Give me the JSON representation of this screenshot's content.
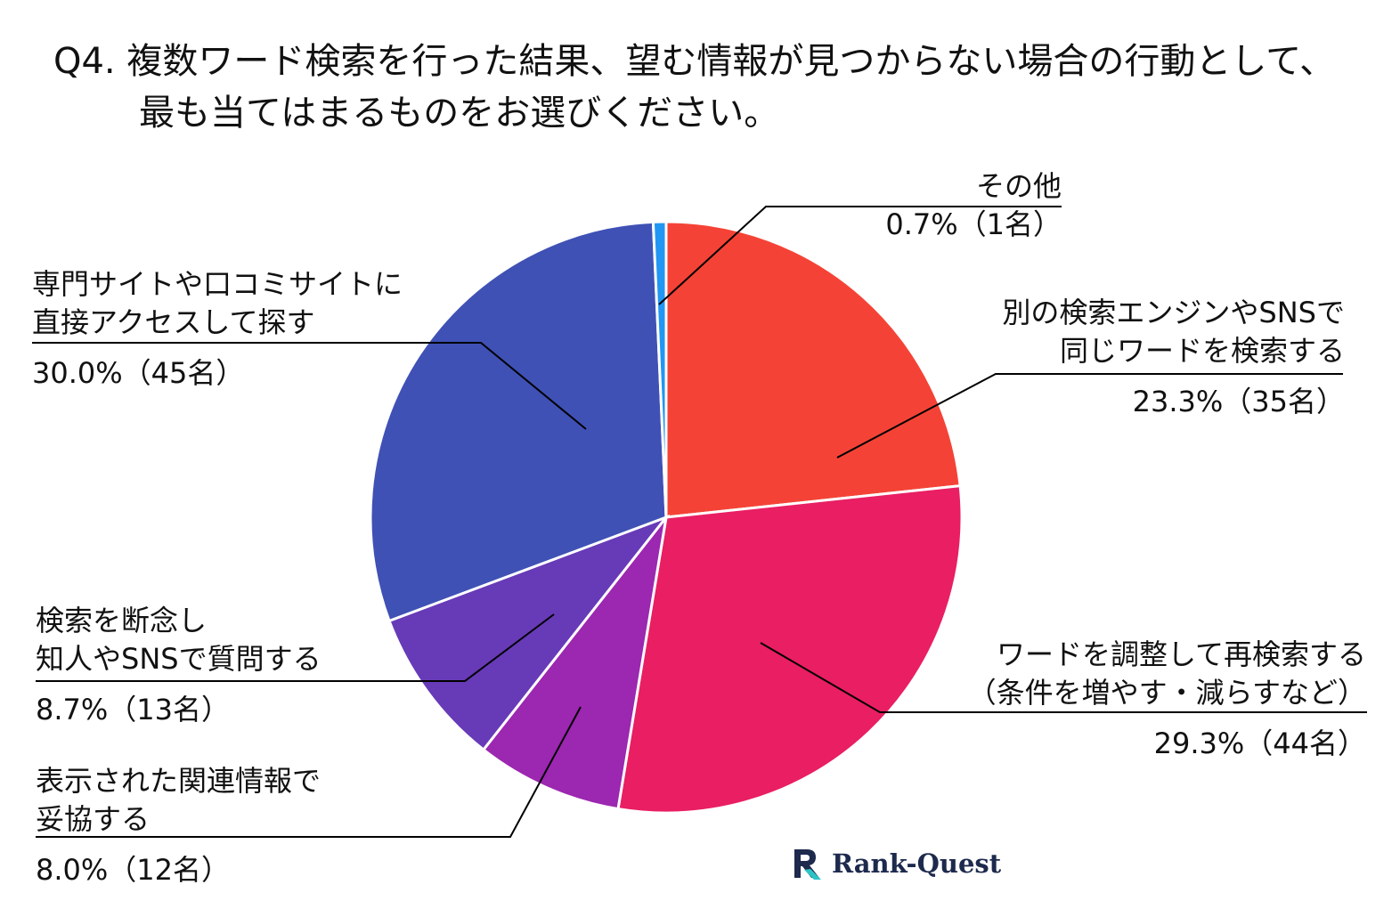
{
  "title": {
    "line1": "Q4. 複数ワード検索を行った結果、望む情報が見つからない場合の行動として、",
    "line2": "最も当てはまるものをお選びください。"
  },
  "chart_data": {
    "type": "pie",
    "start_angle_deg": 0,
    "direction": "clockwise",
    "slices": [
      {
        "label1": "別の検索エンジンやSNSで",
        "label2": "同じワードを検索する",
        "value": 23.3,
        "value_label": "23.3%（35名）",
        "color": "#f44336"
      },
      {
        "label1": "ワードを調整して再検索する",
        "label2": "（条件を増やす・減らすなど）",
        "value": 29.3,
        "value_label": "29.3%（44名）",
        "color": "#e91e63"
      },
      {
        "label1": "表示された関連情報で",
        "label2": "妥協する",
        "value": 8.0,
        "value_label": "8.0%（12名）",
        "color": "#9c27b0"
      },
      {
        "label1": "検索を断念し",
        "label2": "知人やSNSで質問する",
        "value": 8.7,
        "value_label": "8.7%（13名）",
        "color": "#673ab7"
      },
      {
        "label1": "専門サイトや口コミサイトに",
        "label2": "直接アクセスして探す",
        "value": 30.0,
        "value_label": "30.0%（45名）",
        "color": "#3f51b5"
      },
      {
        "label1": "その他",
        "label2": "",
        "value": 0.7,
        "value_label": "0.7%（1名）",
        "color": "#2196f3"
      }
    ]
  },
  "logo": {
    "text": "Rank-Quest",
    "colors": {
      "dark": "#1d2a4d",
      "accent": "#2ec4c6"
    }
  }
}
